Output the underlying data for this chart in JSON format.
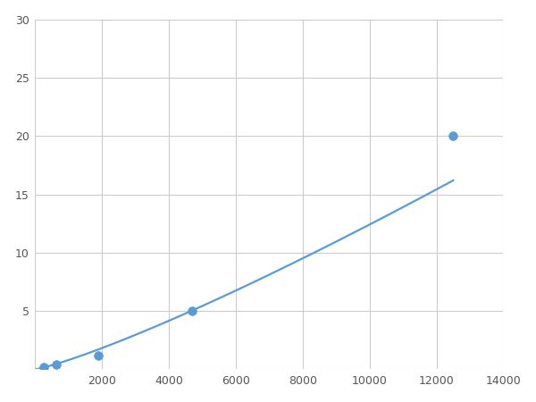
{
  "x": [
    250,
    625,
    1875,
    4688,
    12500
  ],
  "y": [
    0.2,
    0.4,
    1.2,
    5.0,
    20.0
  ],
  "line_color": "#5b9bd5",
  "marker_color": "#5b9bd5",
  "marker_size": 7,
  "line_width": 1.6,
  "xlim": [
    0,
    14000
  ],
  "ylim": [
    0,
    30
  ],
  "xticks": [
    0,
    2000,
    4000,
    6000,
    8000,
    10000,
    12000,
    14000
  ],
  "yticks": [
    0,
    5,
    10,
    15,
    20,
    25,
    30
  ],
  "grid_color": "#cccccc",
  "grid_linewidth": 0.8,
  "background_color": "#ffffff",
  "figsize": [
    6.0,
    4.5
  ],
  "dpi": 100
}
